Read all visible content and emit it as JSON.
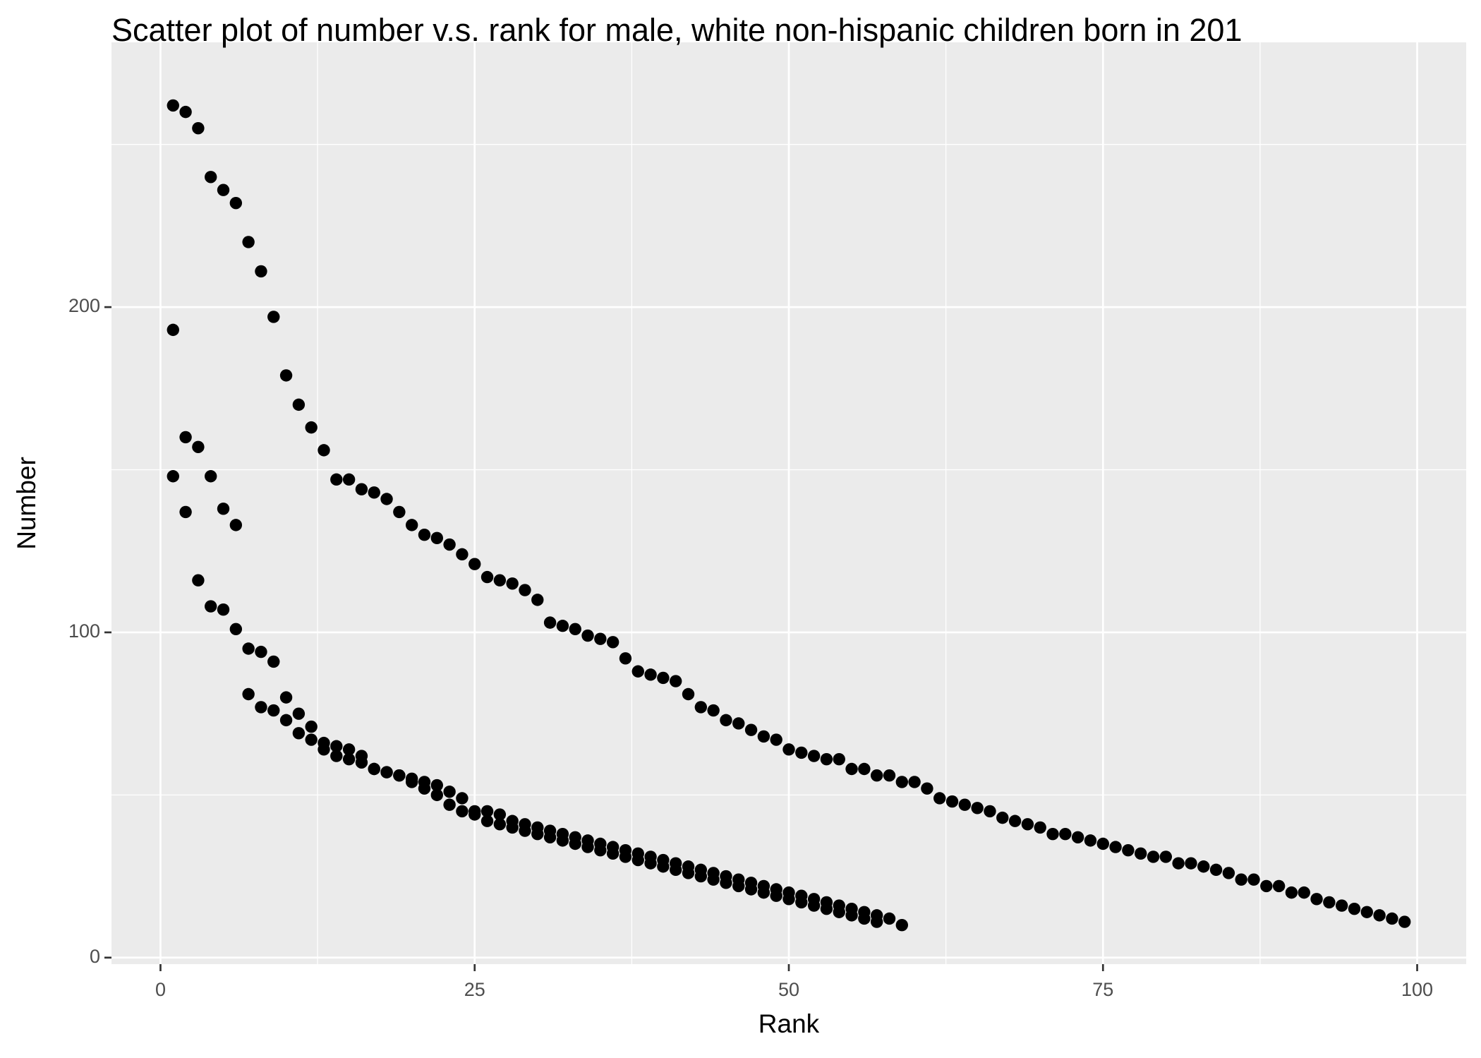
{
  "chart_data": {
    "type": "scatter",
    "title": "Scatter plot of number v.s. rank for male, white non-hispanic children born in 201",
    "x_label": "Rank",
    "y_label": "Number",
    "xlim": [
      -3.9,
      103.9
    ],
    "ylim": [
      -2,
      281.4
    ],
    "xticks": [
      0,
      25,
      50,
      75,
      100
    ],
    "yticks": [
      0,
      100,
      200
    ],
    "grid": true,
    "series": [
      {
        "color": "#000000",
        "x": [
          1,
          2,
          3,
          4,
          5,
          6,
          7,
          8,
          9,
          10,
          11,
          12,
          13,
          14,
          15,
          16,
          17,
          18,
          19,
          20,
          21,
          22,
          23,
          24,
          25,
          26,
          27,
          28,
          29,
          30,
          31,
          32,
          33,
          34,
          35,
          36,
          37,
          38,
          39,
          40,
          41,
          42,
          43,
          44,
          45,
          46,
          47,
          48,
          49,
          50,
          51,
          52,
          53,
          54,
          55,
          56,
          57,
          58,
          59,
          60,
          61,
          62,
          63,
          64,
          65,
          66,
          67,
          68,
          69,
          70,
          71,
          72,
          73,
          74,
          75,
          76,
          77,
          78,
          79,
          80,
          81,
          82,
          83,
          84,
          85,
          86,
          87,
          88,
          89,
          90,
          91,
          92,
          93,
          94,
          95,
          96,
          97,
          98,
          99
        ],
        "values": [
          262,
          260,
          255,
          240,
          236,
          232,
          220,
          211,
          197,
          179,
          170,
          163,
          156,
          147,
          147,
          144,
          143,
          141,
          137,
          133,
          130,
          129,
          127,
          124,
          121,
          117,
          116,
          115,
          113,
          110,
          103,
          102,
          101,
          99,
          98,
          97,
          92,
          88,
          87,
          86,
          85,
          81,
          77,
          76,
          73,
          72,
          70,
          68,
          67,
          64,
          63,
          62,
          61,
          61,
          58,
          58,
          56,
          56,
          54,
          54,
          52,
          49,
          48,
          47,
          46,
          45,
          43,
          42,
          41,
          40,
          38,
          38,
          37,
          36,
          35,
          34,
          33,
          32,
          31,
          31,
          29,
          29,
          28,
          27,
          26,
          24,
          24,
          22,
          22,
          20,
          20,
          18,
          17,
          16,
          15,
          14,
          13,
          12,
          11
        ]
      },
      {
        "color": "#000000",
        "x": [
          1,
          2,
          3,
          4,
          5,
          6,
          7,
          8,
          9,
          10,
          11,
          12,
          13,
          14,
          15,
          16,
          17,
          18,
          19,
          20,
          21,
          22,
          23,
          24,
          25,
          26,
          27,
          28,
          29,
          30,
          31,
          32,
          33,
          34,
          35,
          36,
          37,
          38,
          39,
          40,
          41,
          42,
          43,
          44,
          45,
          46,
          47,
          48,
          49,
          50,
          51,
          52,
          53,
          54,
          55,
          56,
          57,
          58,
          59
        ],
        "values": [
          193,
          160,
          157,
          148,
          138,
          133,
          95,
          94,
          91,
          80,
          75,
          71,
          66,
          65,
          64,
          62,
          58,
          57,
          56,
          55,
          54,
          53,
          51,
          49,
          45,
          45,
          44,
          42,
          41,
          40,
          39,
          38,
          37,
          36,
          35,
          34,
          33,
          32,
          31,
          30,
          29,
          28,
          27,
          26,
          25,
          24,
          23,
          22,
          21,
          20,
          19,
          18,
          17,
          16,
          15,
          14,
          13,
          12,
          10
        ]
      },
      {
        "color": "#000000",
        "x": [
          1,
          2,
          3,
          4,
          5,
          6,
          7,
          8,
          9,
          10,
          11,
          12,
          13,
          14,
          15,
          16,
          17,
          18,
          19,
          20,
          21,
          22,
          23,
          24,
          25,
          26,
          27,
          28,
          29,
          30,
          31,
          32,
          33,
          34,
          35,
          36,
          37,
          38,
          39,
          40,
          41,
          42,
          43,
          44,
          45,
          46,
          47,
          48,
          49,
          50,
          51,
          52,
          53,
          54,
          55,
          56,
          57
        ],
        "values": [
          148,
          137,
          116,
          108,
          107,
          101,
          81,
          77,
          76,
          73,
          69,
          67,
          64,
          62,
          61,
          60,
          58,
          57,
          56,
          54,
          52,
          50,
          47,
          45,
          44,
          42,
          41,
          40,
          39,
          38,
          37,
          36,
          35,
          34,
          33,
          32,
          31,
          30,
          29,
          28,
          27,
          26,
          25,
          24,
          23,
          22,
          21,
          20,
          19,
          18,
          17,
          16,
          15,
          14,
          13,
          12,
          11
        ]
      }
    ]
  }
}
